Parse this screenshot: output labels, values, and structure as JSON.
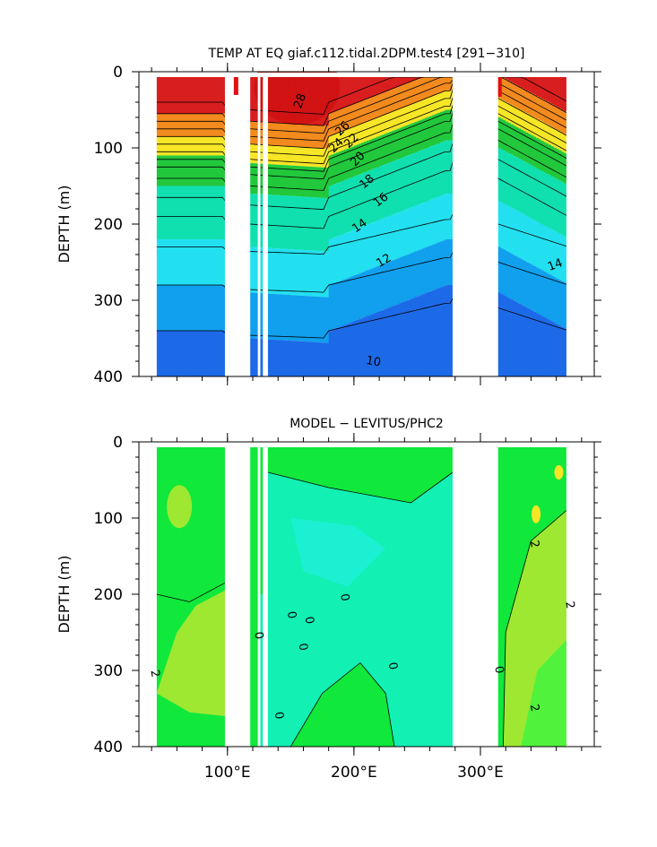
{
  "chart_data": [
    {
      "type": "heatmap",
      "title": "TEMP AT EQ giaf.c112.tidal.2DPM.test4 [291−310]",
      "ylabel": "DEPTH (m)",
      "xlabel": "",
      "ylim": [
        400,
        0
      ],
      "xlim": [
        30,
        390
      ],
      "yticks": [
        "0",
        "100",
        "200",
        "300",
        "400"
      ],
      "xticks": [
        100,
        200,
        300
      ],
      "xtick_labels": [
        "",
        "",
        ""
      ],
      "contour_labels": [
        {
          "text": "28",
          "x": 160,
          "y": 40,
          "rot": -70
        },
        {
          "text": "26",
          "x": 193,
          "y": 78,
          "rot": -45
        },
        {
          "text": "24",
          "x": 188,
          "y": 100,
          "rot": -45
        },
        {
          "text": "22",
          "x": 200,
          "y": 94,
          "rot": -45
        },
        {
          "text": "20",
          "x": 205,
          "y": 118,
          "rot": -45
        },
        {
          "text": "18",
          "x": 212,
          "y": 148,
          "rot": -40
        },
        {
          "text": "16",
          "x": 223,
          "y": 172,
          "rot": -38
        },
        {
          "text": "14",
          "x": 206,
          "y": 206,
          "rot": -35
        },
        {
          "text": "12",
          "x": 225,
          "y": 252,
          "rot": -30
        },
        {
          "text": "14",
          "x": 360,
          "y": 258,
          "rot": -20
        },
        {
          "text": "10",
          "x": 215,
          "y": 385,
          "rot": 10
        }
      ],
      "colorbands": [
        {
          "max_depth": 55,
          "color": "#d81e1e"
        },
        {
          "max_depth": 85,
          "color": "#f28a1e"
        },
        {
          "max_depth": 110,
          "color": "#f7e626"
        },
        {
          "max_depth": 150,
          "color": "#22c83c"
        },
        {
          "max_depth": 220,
          "color": "#10e0b0"
        },
        {
          "max_depth": 280,
          "color": "#22e0f0"
        },
        {
          "max_depth": 340,
          "color": "#10a0ee"
        },
        {
          "max_depth": 400,
          "color": "#1d6ae8"
        }
      ]
    },
    {
      "type": "heatmap",
      "title": "MODEL − LEVITUS/PHC2",
      "ylabel": "DEPTH (m)",
      "xlabel": "",
      "ylim": [
        400,
        0
      ],
      "xlim": [
        30,
        390
      ],
      "yticks": [
        "0",
        "100",
        "200",
        "300",
        "400"
      ],
      "xticks": [
        100,
        200,
        300
      ],
      "xtick_labels": [
        "100°E",
        "200°E",
        "300°E"
      ],
      "contour_labels": [
        {
          "text": "2",
          "x": 40,
          "y": 305,
          "rot": 80
        },
        {
          "text": "0",
          "x": 122,
          "y": 255,
          "rot": 80
        },
        {
          "text": "0",
          "x": 138,
          "y": 360,
          "rot": 80
        },
        {
          "text": "0",
          "x": 148,
          "y": 228,
          "rot": 80
        },
        {
          "text": "0",
          "x": 157,
          "y": 270,
          "rot": 80
        },
        {
          "text": "0",
          "x": 162,
          "y": 235,
          "rot": 80
        },
        {
          "text": "0",
          "x": 190,
          "y": 205,
          "rot": 80
        },
        {
          "text": "0",
          "x": 228,
          "y": 295,
          "rot": 80
        },
        {
          "text": "0",
          "x": 312,
          "y": 300,
          "rot": 80
        },
        {
          "text": "2",
          "x": 340,
          "y": 135,
          "rot": 80
        },
        {
          "text": "2",
          "x": 368,
          "y": 215,
          "rot": 80
        },
        {
          "text": "2",
          "x": 340,
          "y": 350,
          "rot": 80
        }
      ]
    }
  ],
  "colors": {
    "green": "#10e83c",
    "light_green": "#50f23c",
    "yellow_green": "#9ee832",
    "yellow": "#f7e626",
    "cyan_green": "#12f0b4",
    "aqua": "#1cf0d2",
    "land": "#ffffff",
    "red": "#e01010"
  }
}
